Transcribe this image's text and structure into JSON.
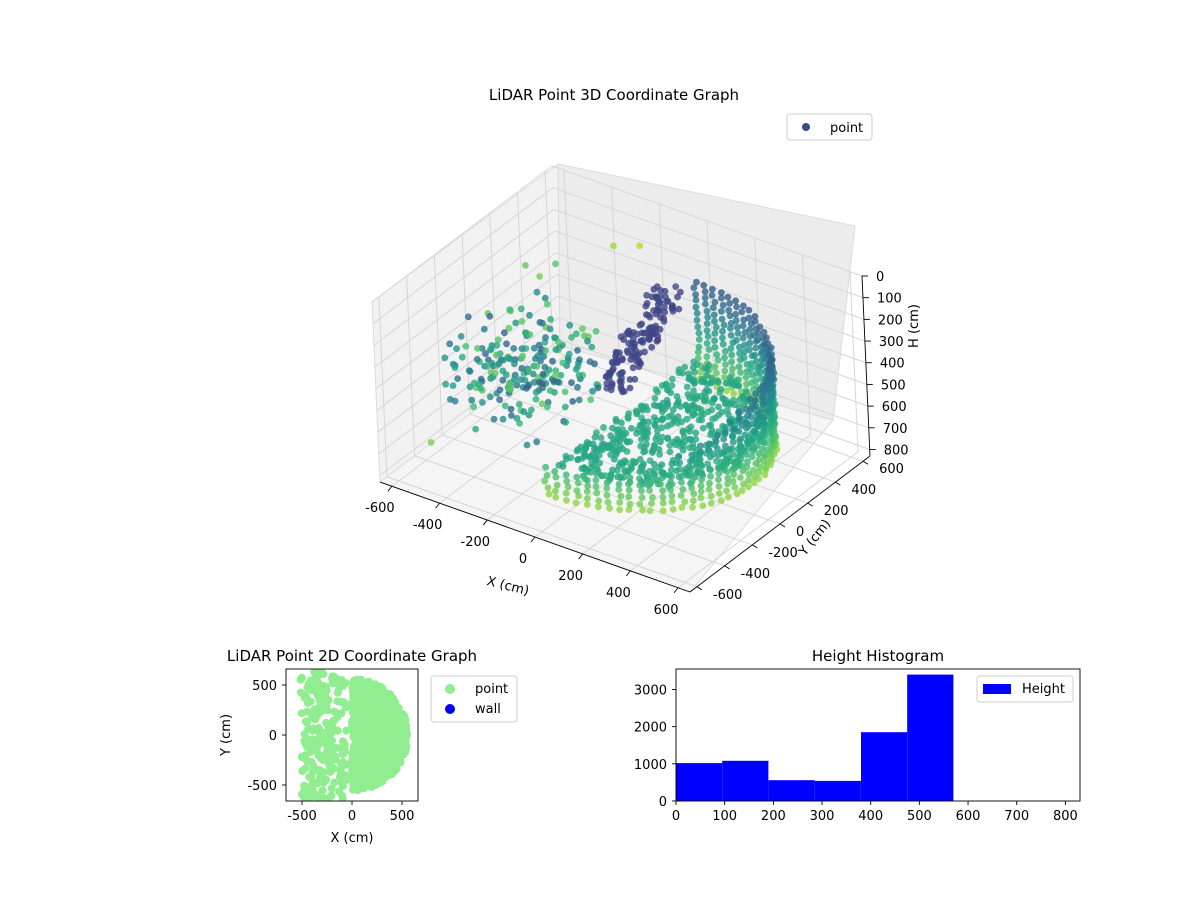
{
  "chart_data": [
    {
      "type": "scatter",
      "projection": "3d",
      "title": "LiDAR Point 3D Coordinate Graph",
      "xlabel": "X (cm)",
      "ylabel": "Y (cm)",
      "zlabel": "H (cm)",
      "xlim": [
        -650,
        650
      ],
      "ylim": [
        -650,
        650
      ],
      "zlim": [
        0,
        830
      ],
      "z_axis_inverted": true,
      "xticks": [
        -600,
        -400,
        -200,
        0,
        200,
        400,
        600
      ],
      "yticks": [
        -600,
        -400,
        -200,
        0,
        200,
        400,
        600
      ],
      "zticks": [
        0,
        100,
        200,
        300,
        400,
        500,
        600,
        700,
        800
      ],
      "colormap": "viridis",
      "grid": true,
      "legend": {
        "placement": "top-right",
        "entries": [
          "point"
        ]
      },
      "series": [
        {
          "name": "point",
          "color": "#3b4a8c",
          "shape": "semi-cylindrical wall of points (radius ~550 cm) opening toward -X, plus scattered points near X -600 to -200",
          "sample_points": [
            [
              500,
              0,
              300
            ],
            [
              450,
              300,
              280
            ],
            [
              300,
              480,
              250
            ],
            [
              0,
              560,
              230
            ],
            [
              450,
              -300,
              350
            ],
            [
              300,
              -480,
              400
            ],
            [
              0,
              -560,
              450
            ],
            [
              -100,
              -550,
              500
            ],
            [
              500,
              0,
              500
            ],
            [
              300,
              480,
              480
            ],
            [
              -250,
              0,
              520
            ],
            [
              -300,
              100,
              600
            ],
            [
              -400,
              -100,
              620
            ],
            [
              -500,
              50,
              650
            ],
            [
              -620,
              -300,
              790
            ],
            [
              -450,
              250,
              420
            ],
            [
              -350,
              300,
              380
            ],
            [
              -200,
              150,
              450
            ]
          ]
        }
      ]
    },
    {
      "type": "scatter",
      "title": "LiDAR Point 2D Coordinate Graph",
      "xlabel": "X (cm)",
      "ylabel": "Y (cm)",
      "xlim": [
        -660,
        660
      ],
      "ylim": [
        -660,
        660
      ],
      "xticks": [
        -500,
        0,
        500
      ],
      "yticks": [
        -500,
        0,
        500
      ],
      "legend": {
        "placement": "outside-right",
        "entries": [
          "point",
          "wall"
        ]
      },
      "series": [
        {
          "name": "point",
          "color": "#90ee90",
          "description": "filled half-disk radius ~560 cm, edge at x about -300 to -500"
        },
        {
          "name": "wall",
          "color": "#0000ff",
          "values": []
        }
      ]
    },
    {
      "type": "bar",
      "subtype": "histogram",
      "title": "Height Histogram",
      "xlim": [
        0,
        830
      ],
      "ylim": [
        0,
        3550
      ],
      "xticks": [
        0,
        100,
        200,
        300,
        400,
        500,
        600,
        700,
        800
      ],
      "yticks": [
        0,
        1000,
        2000,
        3000
      ],
      "legend": {
        "placement": "top-right",
        "entries": [
          "Height"
        ]
      },
      "series": [
        {
          "name": "Height",
          "color": "#0000ff",
          "bins": [
            0,
            95,
            190,
            285,
            380,
            475,
            570,
            665,
            760,
            855
          ],
          "values": [
            1020,
            1080,
            560,
            540,
            1850,
            3400,
            0,
            0,
            0
          ]
        }
      ]
    }
  ]
}
